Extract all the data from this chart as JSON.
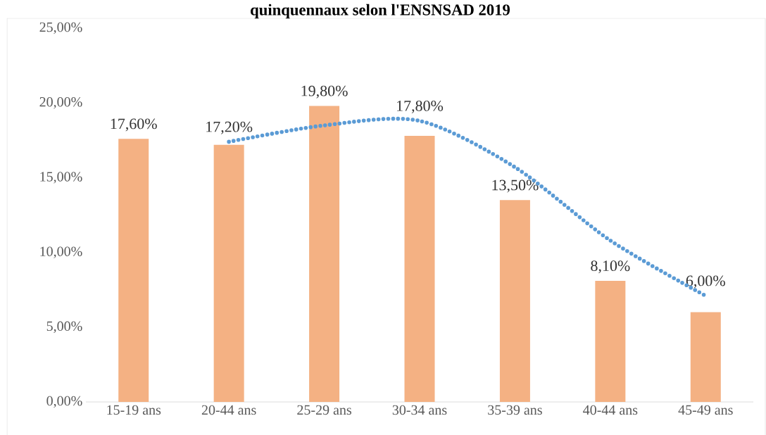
{
  "chart_data": {
    "type": "bar",
    "title": "quinquennaux selon l'ENSNSAD 2019",
    "categories": [
      "15-19 ans",
      "20-44 ans",
      "25-29 ans",
      "30-34 ans",
      "35-39 ans",
      "40-44 ans",
      "45-49 ans"
    ],
    "series": [
      {
        "color": "#f4b183",
        "values": [
          17.6,
          17.2,
          19.8,
          17.8,
          13.5,
          8.1,
          6.0
        ],
        "value_labels": [
          "17,60%",
          "17,20%",
          "19,80%",
          "17,80%",
          "13,50%",
          "8,10%",
          "6,00%"
        ]
      },
      {
        "type": "line",
        "color": "#5b9bd5",
        "line_style": "dotted",
        "marker": "none",
        "values": [
          null,
          17.4,
          18.5,
          18.8,
          15.7,
          10.8,
          7.1
        ]
      }
    ],
    "ylim": [
      0,
      25
    ],
    "yticks": [
      {
        "value": 0,
        "label": "0,00%"
      },
      {
        "value": 5,
        "label": "5,00%"
      },
      {
        "value": 10,
        "label": "10,00%"
      },
      {
        "value": 15,
        "label": "15,00%"
      },
      {
        "value": 20,
        "label": "20,00%"
      },
      {
        "value": 25,
        "label": "25,00%"
      }
    ]
  }
}
